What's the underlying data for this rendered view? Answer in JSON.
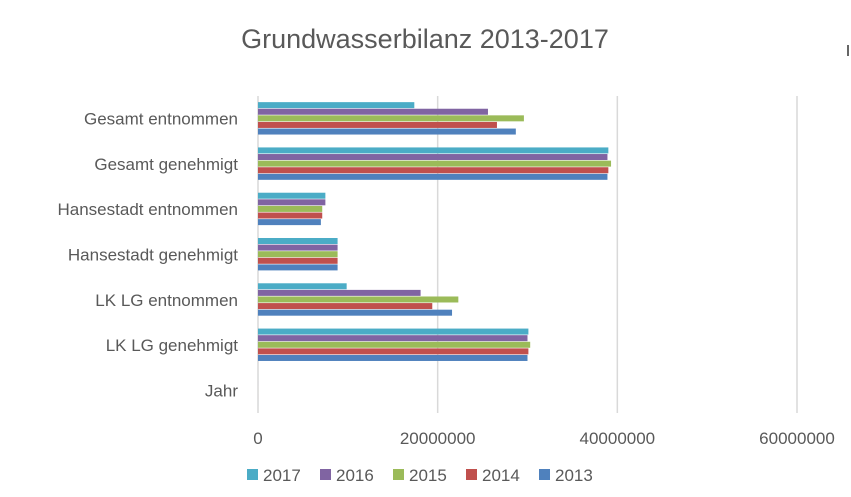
{
  "chart_data": {
    "type": "bar",
    "orientation": "horizontal",
    "title": "Grundwasserbilanz 2013-2017",
    "xlabel": "",
    "ylabel": "",
    "xlim": [
      0,
      60000000
    ],
    "xticks": [
      "0",
      "20000000",
      "40000000",
      "60000000"
    ],
    "grid": true,
    "legend_position": "bottom",
    "categories": [
      "Gesamt entnommen",
      "Gesamt genehmigt",
      "Hansestadt entnommen",
      "Hansestadt genehmigt",
      "LK LG entnommen",
      "LK LG genehmigt",
      "Jahr"
    ],
    "series": [
      {
        "name": "2017",
        "color": "#4bacc6",
        "values": [
          17400000,
          39000000,
          7500000,
          8860000,
          9870000,
          30100000,
          2017
        ]
      },
      {
        "name": "2016",
        "color": "#8064a2",
        "values": [
          25600000,
          38900000,
          7500000,
          8860000,
          18100000,
          30000000,
          2016
        ]
      },
      {
        "name": "2015",
        "color": "#9bbb59",
        "values": [
          29600000,
          39300000,
          7150000,
          8860000,
          22300000,
          30300000,
          2015
        ]
      },
      {
        "name": "2014",
        "color": "#c0504d",
        "values": [
          26600000,
          39000000,
          7150000,
          8860000,
          19400000,
          30100000,
          2014
        ]
      },
      {
        "name": "2013",
        "color": "#4f81bd",
        "values": [
          28700000,
          38900000,
          7000000,
          8860000,
          21600000,
          30000000,
          2013
        ]
      }
    ]
  }
}
